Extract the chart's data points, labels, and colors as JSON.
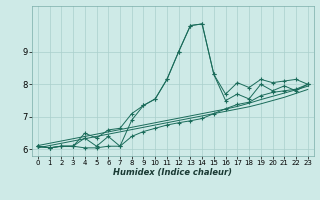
{
  "xlabel": "Humidex (Indice chaleur)",
  "x_data": [
    0,
    1,
    2,
    3,
    4,
    5,
    6,
    7,
    8,
    9,
    10,
    11,
    12,
    13,
    14,
    15,
    16,
    17,
    18,
    19,
    20,
    21,
    22,
    23
  ],
  "y_main": [
    6.1,
    6.05,
    6.1,
    6.1,
    6.35,
    6.1,
    6.4,
    6.1,
    6.9,
    7.35,
    7.55,
    8.15,
    9.0,
    9.8,
    9.85,
    8.3,
    7.5,
    7.7,
    7.55,
    8.0,
    7.8,
    7.95,
    7.8,
    8.0
  ],
  "y_upper": [
    6.1,
    6.05,
    6.1,
    6.1,
    6.5,
    6.35,
    6.6,
    6.65,
    7.1,
    7.35,
    7.55,
    8.15,
    9.0,
    9.8,
    9.85,
    8.3,
    7.7,
    8.05,
    7.9,
    8.15,
    8.05,
    8.1,
    8.15,
    8.0
  ],
  "y_lower": [
    6.1,
    6.05,
    6.1,
    6.1,
    6.05,
    6.05,
    6.1,
    6.1,
    6.4,
    6.55,
    6.65,
    6.75,
    6.82,
    6.88,
    6.95,
    7.1,
    7.25,
    7.38,
    7.45,
    7.65,
    7.75,
    7.8,
    7.85,
    8.0
  ],
  "y_reg1": [
    6.05,
    6.12,
    6.19,
    6.26,
    6.33,
    6.4,
    6.47,
    6.54,
    6.61,
    6.68,
    6.75,
    6.82,
    6.89,
    6.96,
    7.03,
    7.1,
    7.17,
    7.24,
    7.31,
    7.4,
    7.5,
    7.6,
    7.72,
    7.84
  ],
  "y_reg2": [
    6.12,
    6.19,
    6.26,
    6.33,
    6.4,
    6.47,
    6.54,
    6.61,
    6.68,
    6.75,
    6.82,
    6.89,
    6.96,
    7.03,
    7.1,
    7.17,
    7.24,
    7.32,
    7.42,
    7.53,
    7.63,
    7.73,
    7.83,
    7.94
  ],
  "line_color": "#1a6b5a",
  "bg_color": "#ceeae7",
  "grid_color": "#aacfcc",
  "ylim": [
    5.8,
    10.4
  ],
  "xlim": [
    -0.5,
    23.5
  ],
  "yticks": [
    6,
    7,
    8,
    9
  ],
  "xticks": [
    0,
    1,
    2,
    3,
    4,
    5,
    6,
    7,
    8,
    9,
    10,
    11,
    12,
    13,
    14,
    15,
    16,
    17,
    18,
    19,
    20,
    21,
    22,
    23
  ]
}
